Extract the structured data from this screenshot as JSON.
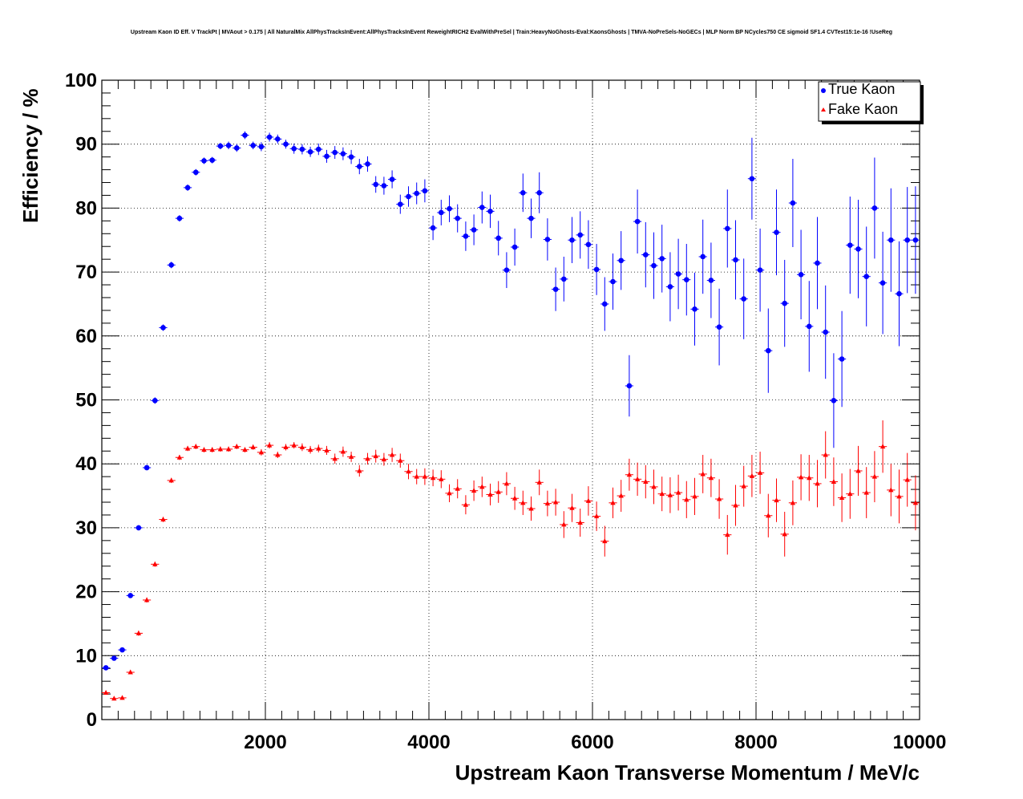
{
  "chart_data": {
    "type": "scatter",
    "title": "Upstream Kaon ID Eff. V TrackPt | MVAout > 0.175 | All NaturalMix AllPhysTracksInEvent:AllPhysTracksInEvent ReweightRICH2 EvalWithPreSel | Train:HeavyNoGhosts-Eval:KaonsGhosts | TMVA-NoPreSels-NoGECs | MLP Norm BP NCycles750 CE sigmoid SF1.4 CVTest15:1e-16 !UseReg",
    "xlabel": "Upstream Kaon Transverse Momentum / MeV/c",
    "ylabel": "Efficiency / %",
    "xlim": [
      0,
      10000
    ],
    "ylim": [
      0,
      100
    ],
    "xticks": [
      2000,
      4000,
      6000,
      8000,
      10000
    ],
    "yticks": [
      0,
      10,
      20,
      30,
      40,
      50,
      60,
      70,
      80,
      90,
      100
    ],
    "grid": true,
    "legend_position": "top-right",
    "bin_half_width": 50,
    "series": [
      {
        "name": "True Kaon",
        "color": "#0000ff",
        "marker": "circle",
        "x": [
          50,
          150,
          250,
          350,
          450,
          550,
          650,
          750,
          850,
          950,
          1050,
          1150,
          1250,
          1350,
          1450,
          1550,
          1650,
          1750,
          1850,
          1950,
          2050,
          2150,
          2250,
          2350,
          2450,
          2550,
          2650,
          2750,
          2850,
          2950,
          3050,
          3150,
          3250,
          3350,
          3450,
          3550,
          3650,
          3750,
          3850,
          3950,
          4050,
          4150,
          4250,
          4350,
          4450,
          4550,
          4650,
          4750,
          4850,
          4950,
          5050,
          5150,
          5250,
          5350,
          5450,
          5550,
          5650,
          5750,
          5850,
          5950,
          6050,
          6150,
          6250,
          6350,
          6450,
          6550,
          6650,
          6750,
          6850,
          6950,
          7050,
          7150,
          7250,
          7350,
          7450,
          7550,
          7650,
          7750,
          7850,
          7950,
          8050,
          8150,
          8250,
          8350,
          8450,
          8550,
          8650,
          8750,
          8850,
          8950,
          9050,
          9150,
          9250,
          9350,
          9450,
          9550,
          9650,
          9750,
          9850,
          9950
        ],
        "y": [
          8.1,
          9.6,
          10.9,
          19.4,
          30.0,
          39.4,
          49.9,
          61.3,
          71.1,
          78.4,
          83.2,
          85.6,
          87.4,
          87.5,
          89.7,
          89.8,
          89.4,
          91.4,
          89.8,
          89.6,
          91.1,
          90.8,
          90.0,
          89.3,
          89.2,
          88.8,
          89.2,
          88.1,
          88.7,
          88.5,
          88.0,
          86.5,
          86.9,
          83.7,
          83.5,
          84.5,
          80.6,
          81.8,
          82.3,
          82.7,
          76.9,
          79.3,
          79.9,
          78.4,
          75.6,
          76.6,
          80.1,
          79.5,
          75.3,
          70.3,
          73.9,
          82.4,
          78.4,
          82.4,
          75.1,
          67.3,
          68.9,
          75.0,
          75.8,
          74.3,
          70.4,
          65.0,
          68.5,
          71.8,
          52.2,
          77.9,
          72.7,
          71.0,
          72.1,
          67.7,
          69.7,
          68.8,
          64.2,
          72.4,
          68.7,
          61.4,
          76.8,
          71.9,
          65.8,
          84.6,
          70.3,
          57.7,
          76.2,
          65.1,
          80.8,
          69.6,
          61.5,
          71.4,
          60.6,
          49.9,
          56.4,
          74.2,
          73.6,
          69.3,
          80.0,
          68.3,
          75.0,
          66.6,
          75.0,
          75.0
        ],
        "yerr": [
          0.3,
          0.3,
          0.3,
          0.4,
          0.4,
          0.4,
          0.5,
          0.5,
          0.5,
          0.5,
          0.5,
          0.5,
          0.5,
          0.5,
          0.5,
          0.6,
          0.6,
          0.6,
          0.6,
          0.7,
          0.7,
          0.7,
          0.7,
          0.8,
          0.8,
          0.8,
          0.9,
          1.0,
          1.0,
          1.0,
          1.1,
          1.2,
          1.2,
          1.3,
          1.4,
          1.4,
          1.5,
          1.6,
          1.7,
          1.8,
          1.9,
          2.0,
          2.1,
          2.2,
          2.3,
          2.4,
          2.5,
          2.6,
          2.7,
          2.8,
          2.9,
          3.0,
          3.1,
          3.2,
          3.3,
          3.4,
          3.5,
          3.6,
          3.7,
          3.8,
          4.0,
          4.2,
          4.4,
          4.6,
          4.8,
          5.0,
          5.1,
          5.2,
          5.3,
          5.4,
          5.5,
          5.6,
          5.7,
          5.8,
          5.9,
          6.0,
          6.1,
          6.2,
          6.3,
          6.4,
          6.5,
          6.6,
          6.7,
          6.8,
          6.9,
          7.0,
          7.1,
          7.2,
          7.3,
          7.4,
          7.5,
          7.6,
          7.7,
          7.8,
          7.9,
          8.0,
          8.1,
          8.2,
          8.3,
          8.4
        ]
      },
      {
        "name": "Fake Kaon",
        "color": "#ff0000",
        "marker": "triangle",
        "x": [
          50,
          150,
          250,
          350,
          450,
          550,
          650,
          750,
          850,
          950,
          1050,
          1150,
          1250,
          1350,
          1450,
          1550,
          1650,
          1750,
          1850,
          1950,
          2050,
          2150,
          2250,
          2350,
          2450,
          2550,
          2650,
          2750,
          2850,
          2950,
          3050,
          3150,
          3250,
          3350,
          3450,
          3550,
          3650,
          3750,
          3850,
          3950,
          4050,
          4150,
          4250,
          4350,
          4450,
          4550,
          4650,
          4750,
          4850,
          4950,
          5050,
          5150,
          5250,
          5350,
          5450,
          5550,
          5650,
          5750,
          5850,
          5950,
          6050,
          6150,
          6250,
          6350,
          6450,
          6550,
          6650,
          6750,
          6850,
          6950,
          7050,
          7150,
          7250,
          7350,
          7450,
          7550,
          7650,
          7750,
          7850,
          7950,
          8050,
          8150,
          8250,
          8350,
          8450,
          8550,
          8650,
          8750,
          8850,
          8950,
          9050,
          9150,
          9250,
          9350,
          9450,
          9550,
          9650,
          9750,
          9850,
          9950
        ],
        "y": [
          4.2,
          3.3,
          3.4,
          7.4,
          13.5,
          18.7,
          24.3,
          31.3,
          37.4,
          41.0,
          42.4,
          42.7,
          42.2,
          42.2,
          42.3,
          42.3,
          42.7,
          42.2,
          42.6,
          41.8,
          42.9,
          41.4,
          42.6,
          42.9,
          42.6,
          42.2,
          42.4,
          42.1,
          40.8,
          41.9,
          41.1,
          38.9,
          40.8,
          41.2,
          40.7,
          41.4,
          40.5,
          38.8,
          38.0,
          38.0,
          37.8,
          37.6,
          35.4,
          36.1,
          33.6,
          35.8,
          36.4,
          35.2,
          35.6,
          36.9,
          34.6,
          33.9,
          33.0,
          37.1,
          33.8,
          34.0,
          30.5,
          33.1,
          30.8,
          34.2,
          31.8,
          27.9,
          33.9,
          35.0,
          38.3,
          37.6,
          37.2,
          36.4,
          35.3,
          35.1,
          35.5,
          34.4,
          34.9,
          38.4,
          37.8,
          34.5,
          28.9,
          33.5,
          36.5,
          38.1,
          38.6,
          31.9,
          34.3,
          29.0,
          33.9,
          37.9,
          37.8,
          36.9,
          41.4,
          37.2,
          34.7,
          35.3,
          38.9,
          35.5,
          38.0,
          42.7,
          35.9,
          34.9,
          37.5,
          33.9
        ],
        "yerr": [
          0.3,
          0.3,
          0.3,
          0.3,
          0.4,
          0.4,
          0.4,
          0.4,
          0.4,
          0.4,
          0.4,
          0.4,
          0.4,
          0.4,
          0.4,
          0.4,
          0.4,
          0.4,
          0.4,
          0.5,
          0.5,
          0.5,
          0.5,
          0.5,
          0.6,
          0.6,
          0.6,
          0.7,
          0.8,
          0.8,
          0.8,
          0.9,
          0.9,
          1.0,
          1.0,
          1.1,
          1.1,
          1.2,
          1.2,
          1.3,
          1.3,
          1.4,
          1.4,
          1.5,
          1.5,
          1.6,
          1.6,
          1.7,
          1.7,
          1.8,
          1.8,
          1.9,
          1.9,
          2.0,
          2.0,
          2.1,
          2.1,
          2.2,
          2.2,
          2.3,
          2.3,
          2.4,
          2.4,
          2.5,
          2.5,
          2.6,
          2.6,
          2.7,
          2.7,
          2.8,
          2.8,
          2.9,
          2.9,
          3.0,
          3.0,
          3.1,
          3.1,
          3.2,
          3.2,
          3.3,
          3.3,
          3.4,
          3.4,
          3.5,
          3.5,
          3.6,
          3.6,
          3.7,
          3.7,
          3.8,
          3.8,
          3.9,
          3.9,
          4.0,
          4.0,
          4.1,
          4.1,
          4.2,
          4.2,
          4.3
        ]
      }
    ]
  }
}
